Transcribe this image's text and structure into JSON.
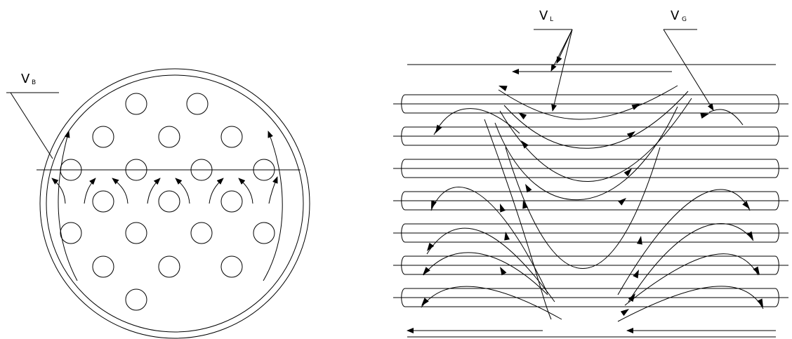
{
  "labels": {
    "vb": {
      "main": "V",
      "sub": "B"
    },
    "vl": {
      "main": "V",
      "sub": "L"
    },
    "vg": {
      "main": "V",
      "sub": "G"
    }
  },
  "colors": {
    "stroke": "#000000",
    "background": "#ffffff"
  }
}
